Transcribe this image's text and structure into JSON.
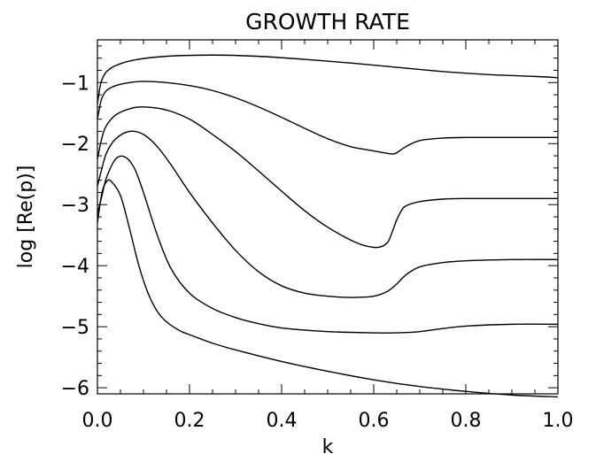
{
  "chart_data": {
    "type": "line",
    "title": "GROWTH RATE",
    "xlabel": "k",
    "ylabel": "log [Re(p)]",
    "xlim": [
      0.0,
      1.0
    ],
    "ylim": [
      -6.1,
      -0.3
    ],
    "xticks": [
      0.0,
      0.2,
      0.4,
      0.6,
      0.8,
      1.0
    ],
    "xtick_labels": [
      "0.0",
      "0.2",
      "0.4",
      "0.6",
      "0.8",
      "1.0"
    ],
    "yticks": [
      -1,
      -2,
      -3,
      -4,
      -5,
      -6
    ],
    "ytick_labels": [
      "−1",
      "−2",
      "−3",
      "−4",
      "−5",
      "−6"
    ],
    "grid": false,
    "series": [
      {
        "x": [
          0.0,
          0.005,
          0.01,
          0.02,
          0.04,
          0.08,
          0.15,
          0.25,
          0.35,
          0.45,
          0.55,
          0.65,
          0.75,
          0.85,
          0.95,
          1.0
        ],
        "y": [
          -1.35,
          -1.1,
          -0.95,
          -0.82,
          -0.72,
          -0.63,
          -0.57,
          -0.55,
          -0.57,
          -0.62,
          -0.68,
          -0.75,
          -0.82,
          -0.87,
          -0.9,
          -0.92
        ]
      },
      {
        "x": [
          0.0,
          0.005,
          0.01,
          0.02,
          0.04,
          0.07,
          0.1,
          0.15,
          0.2,
          0.25,
          0.3,
          0.35,
          0.4,
          0.45,
          0.5,
          0.55,
          0.6,
          0.63,
          0.64,
          0.65,
          0.67,
          0.7,
          0.75,
          0.8,
          0.9,
          1.0
        ],
        "y": [
          -1.6,
          -1.4,
          -1.25,
          -1.13,
          -1.05,
          -1.0,
          -0.98,
          -1.0,
          -1.05,
          -1.13,
          -1.25,
          -1.4,
          -1.57,
          -1.75,
          -1.92,
          -2.05,
          -2.12,
          -2.16,
          -2.17,
          -2.15,
          -2.05,
          -1.95,
          -1.91,
          -1.9,
          -1.9,
          -1.9
        ]
      },
      {
        "x": [
          0.0,
          0.01,
          0.02,
          0.04,
          0.07,
          0.1,
          0.15,
          0.2,
          0.25,
          0.3,
          0.35,
          0.4,
          0.45,
          0.5,
          0.55,
          0.58,
          0.61,
          0.63,
          0.64,
          0.65,
          0.66,
          0.67,
          0.7,
          0.75,
          0.8,
          0.9,
          1.0
        ],
        "y": [
          -2.25,
          -1.9,
          -1.7,
          -1.53,
          -1.43,
          -1.4,
          -1.45,
          -1.6,
          -1.85,
          -2.13,
          -2.45,
          -2.78,
          -3.1,
          -3.37,
          -3.58,
          -3.67,
          -3.7,
          -3.62,
          -3.45,
          -3.25,
          -3.1,
          -3.02,
          -2.95,
          -2.91,
          -2.9,
          -2.9,
          -2.9
        ]
      },
      {
        "x": [
          0.0,
          0.01,
          0.02,
          0.04,
          0.07,
          0.1,
          0.13,
          0.16,
          0.2,
          0.25,
          0.3,
          0.35,
          0.4,
          0.45,
          0.5,
          0.55,
          0.6,
          0.63,
          0.65,
          0.67,
          0.7,
          0.75,
          0.8,
          0.9,
          1.0
        ],
        "y": [
          -2.7,
          -2.4,
          -2.15,
          -1.92,
          -1.8,
          -1.85,
          -2.05,
          -2.35,
          -2.8,
          -3.3,
          -3.75,
          -4.1,
          -4.33,
          -4.45,
          -4.5,
          -4.52,
          -4.5,
          -4.42,
          -4.3,
          -4.15,
          -4.02,
          -3.95,
          -3.92,
          -3.9,
          -3.9
        ]
      },
      {
        "x": [
          0.0,
          0.01,
          0.02,
          0.04,
          0.06,
          0.08,
          0.1,
          0.13,
          0.16,
          0.2,
          0.25,
          0.3,
          0.35,
          0.4,
          0.5,
          0.6,
          0.65,
          0.7,
          0.75,
          0.8,
          0.9,
          1.0
        ],
        "y": [
          -3.15,
          -2.85,
          -2.55,
          -2.25,
          -2.22,
          -2.4,
          -2.8,
          -3.5,
          -4.05,
          -4.45,
          -4.7,
          -4.85,
          -4.95,
          -5.02,
          -5.08,
          -5.1,
          -5.1,
          -5.08,
          -5.03,
          -4.99,
          -4.96,
          -4.96
        ]
      },
      {
        "x": [
          0.0,
          0.01,
          0.02,
          0.03,
          0.05,
          0.07,
          0.09,
          0.11,
          0.13,
          0.15,
          0.18,
          0.2,
          0.25,
          0.3,
          0.4,
          0.5,
          0.6,
          0.7,
          0.8,
          0.9,
          1.0
        ],
        "y": [
          -3.3,
          -2.8,
          -2.62,
          -2.62,
          -2.85,
          -3.4,
          -4.0,
          -4.45,
          -4.75,
          -4.92,
          -5.07,
          -5.13,
          -5.27,
          -5.38,
          -5.57,
          -5.73,
          -5.87,
          -5.98,
          -6.06,
          -6.12,
          -6.15
        ]
      }
    ]
  }
}
